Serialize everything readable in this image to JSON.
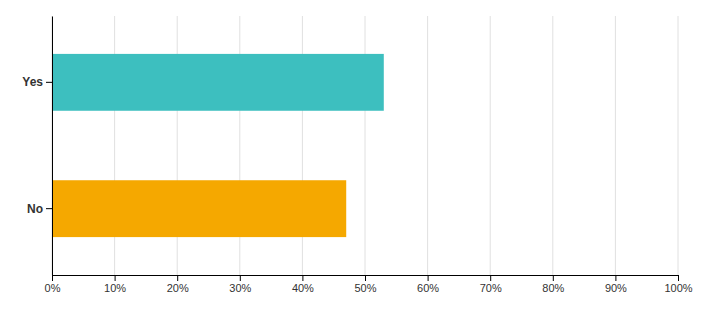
{
  "chart_data": {
    "type": "bar",
    "orientation": "horizontal",
    "categories": [
      "No",
      "Yes"
    ],
    "values": [
      47,
      53
    ],
    "colors": [
      "#F5A800",
      "#3DBFBF"
    ],
    "xlim": [
      0,
      100
    ],
    "xticks": [
      {
        "value": 0,
        "label": "0%"
      },
      {
        "value": 10,
        "label": "10%"
      },
      {
        "value": 20,
        "label": "20%"
      },
      {
        "value": 30,
        "label": "30%"
      },
      {
        "value": 40,
        "label": "40%"
      },
      {
        "value": 50,
        "label": "50%"
      },
      {
        "value": 60,
        "label": "60%"
      },
      {
        "value": 70,
        "label": "70%"
      },
      {
        "value": 80,
        "label": "80%"
      },
      {
        "value": 90,
        "label": "90%"
      },
      {
        "value": 100,
        "label": "100%"
      }
    ],
    "grid": true
  }
}
